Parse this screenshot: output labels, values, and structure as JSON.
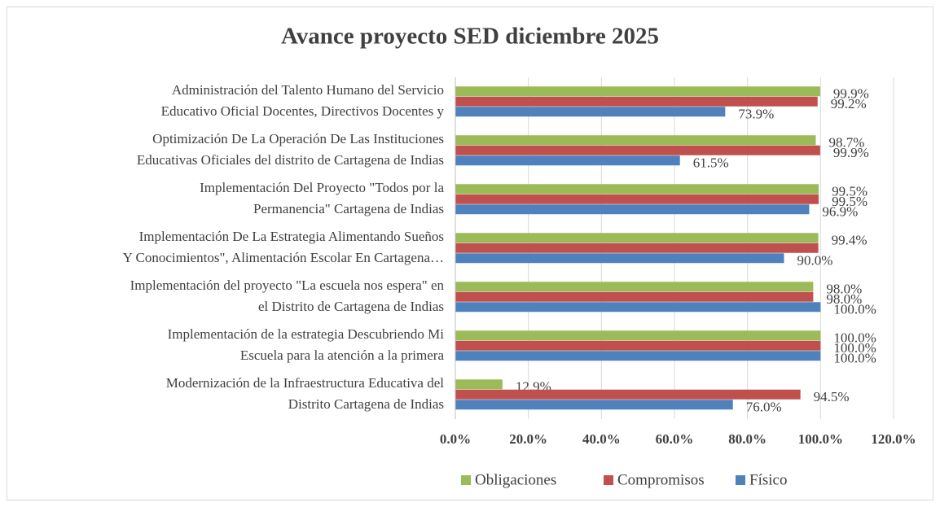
{
  "chart_data": {
    "type": "bar",
    "orientation": "horizontal",
    "title": "Avance proyecto SED diciembre 2025",
    "categories": [
      [
        "Administración del Talento Humano del Servicio",
        "Educativo Oficial Docentes, Directivos Docentes y"
      ],
      [
        "Optimización De La Operación De Las Instituciones",
        "Educativas Oficiales del distrito de Cartagena de Indias"
      ],
      [
        "Implementación Del Proyecto \"Todos por la",
        "Permanencia\" Cartagena de Indias"
      ],
      [
        "Implementación De La Estrategia  Alimentando Sueños",
        "Y Conocimientos\", Alimentación Escolar En Cartagena…"
      ],
      [
        "Implementación del proyecto \"La escuela nos espera\" en",
        "el Distrito de Cartagena de Indias"
      ],
      [
        "Implementación de la estrategia Descubriendo Mi",
        "Escuela para la atención a la primera"
      ],
      [
        "Modernización de la Infraestructura Educativa del",
        "Distrito Cartagena de Indias"
      ]
    ],
    "series": [
      {
        "name": "Obligaciones",
        "color": "#9bbb59",
        "values": [
          99.9,
          98.7,
          99.5,
          99.4,
          98.0,
          100.0,
          12.9
        ],
        "value_labels": [
          "99.9%",
          "98.7%",
          "99.5%",
          "99.4%",
          "98.0%",
          "100.0%",
          "12.9%"
        ]
      },
      {
        "name": "Compromisos",
        "color": "#c0504d",
        "values": [
          99.2,
          99.9,
          99.5,
          99.4,
          98.0,
          100.0,
          94.5
        ],
        "value_labels": [
          "99.2%",
          "99.9%",
          "99.5%",
          null,
          "98.0%",
          "100.0%",
          "94.5%"
        ]
      },
      {
        "name": "Físico",
        "color": "#4f81bd",
        "values": [
          73.9,
          61.5,
          96.9,
          90.0,
          100.0,
          100.0,
          76.0
        ],
        "value_labels": [
          "73.9%",
          "61.5%",
          "96.9%",
          "90.0%",
          "100.0%",
          "100.0%",
          "76.0%"
        ]
      }
    ],
    "xlim": [
      0,
      120
    ],
    "xticks": [
      {
        "value": 0,
        "label": "0.0%"
      },
      {
        "value": 20,
        "label": "20.0%"
      },
      {
        "value": 40,
        "label": "40.0%"
      },
      {
        "value": 60,
        "label": "60.0%"
      },
      {
        "value": 80,
        "label": "80.0%"
      },
      {
        "value": 100,
        "label": "100.0%"
      },
      {
        "value": 120,
        "label": "120.0%"
      }
    ],
    "grid": true,
    "legend": "bottom"
  }
}
